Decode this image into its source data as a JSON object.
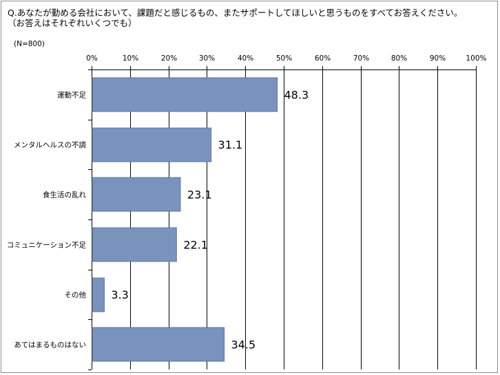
{
  "question": {
    "title": "Q.あなたが勤める会社において、課題だと感じるもの、またサポートしてほしいと思うものをすべてお答えください。",
    "subtitle": "（お答えはそれぞれいくつでも）",
    "sample": "(N=800)"
  },
  "chart_data": {
    "type": "bar",
    "orientation": "horizontal",
    "categories": [
      "運動不足",
      "メンタルヘルスの不調",
      "食生活の乱れ",
      "コミュニケーション不足",
      "その他",
      "あてはまるものはない"
    ],
    "values": [
      48.3,
      31.1,
      23.1,
      22.1,
      3.3,
      34.5
    ],
    "value_labels": [
      "48.3",
      "31.1",
      "23.1",
      "22.1",
      "3.3",
      "34.5"
    ],
    "xlim": [
      0,
      100
    ],
    "ticks": [
      "0%",
      "10%",
      "20%",
      "30%",
      "40%",
      "50%",
      "60%",
      "70%",
      "80%",
      "90%",
      "100%"
    ],
    "axis_position": "top",
    "grid": true,
    "bar_color": "#7a93bd",
    "bar_edge_color": "#5b729c",
    "grid_color": "#000000"
  }
}
